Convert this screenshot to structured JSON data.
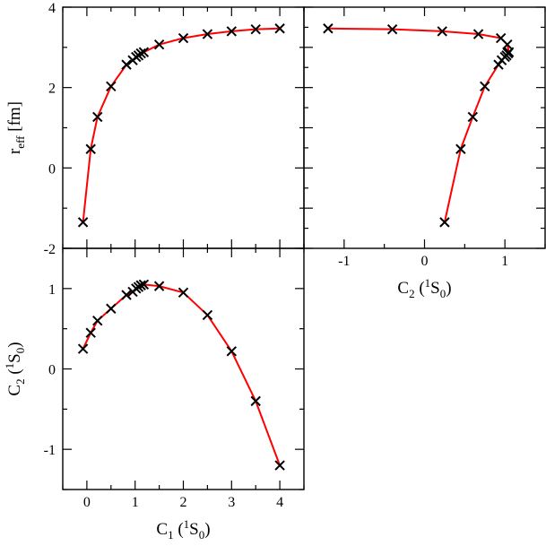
{
  "chart_data": [
    {
      "panel": "top-left",
      "type": "line",
      "xlim": [
        -0.5,
        4.5
      ],
      "ylim": [
        -2,
        4
      ],
      "xticks": [],
      "yticks": [
        -2,
        0,
        2,
        4
      ],
      "ylabel": {
        "main": "r",
        "sub": "eff",
        "unit": "[fm]"
      },
      "line_color": "#ff0000",
      "marker": "x",
      "x": [
        -0.08,
        0.08,
        0.22,
        0.5,
        0.82,
        0.95,
        1.02,
        1.07,
        1.12,
        1.18,
        1.5,
        2.0,
        2.5,
        3.0,
        3.5,
        4.0
      ],
      "y": [
        -1.35,
        0.47,
        1.27,
        2.03,
        2.57,
        2.68,
        2.76,
        2.8,
        2.85,
        2.88,
        3.07,
        3.23,
        3.33,
        3.4,
        3.45,
        3.47
      ]
    },
    {
      "panel": "top-right",
      "type": "line",
      "xlim": [
        -1.5,
        1.5
      ],
      "ylim": [
        -2,
        4
      ],
      "xticks": [
        -1,
        0,
        1
      ],
      "yticks": [],
      "xlabel": {
        "main": "C",
        "sub": "2",
        "open": " (",
        "sup": "1",
        "mid": "S",
        "sub2": "0",
        "close": ")"
      },
      "line_color": "#ff0000",
      "marker": "x",
      "x": [
        0.25,
        0.45,
        0.6,
        0.75,
        0.92,
        0.96,
        1.0,
        1.02,
        1.04,
        1.05,
        1.03,
        0.95,
        0.67,
        0.22,
        -0.4,
        -1.2
      ],
      "y": [
        -1.35,
        0.47,
        1.27,
        2.03,
        2.57,
        2.68,
        2.76,
        2.8,
        2.85,
        2.88,
        3.07,
        3.23,
        3.33,
        3.4,
        3.45,
        3.47
      ]
    },
    {
      "panel": "bottom-left",
      "type": "line",
      "xlim": [
        -0.5,
        4.5
      ],
      "ylim": [
        -1.5,
        1.5
      ],
      "xticks": [
        0,
        1,
        2,
        3,
        4
      ],
      "yticks": [
        -1,
        0,
        1
      ],
      "xlabel": {
        "main": "C",
        "sub": "1",
        "open": " (",
        "sup": "1",
        "mid": "S",
        "sub2": "0",
        "close": ")"
      },
      "ylabel": {
        "main": "C",
        "sub": "2",
        "open": " (",
        "sup": "1",
        "mid": "S",
        "sub2": "0",
        "close": ")"
      },
      "line_color": "#ff0000",
      "marker": "x",
      "x": [
        -0.08,
        0.08,
        0.22,
        0.5,
        0.82,
        0.95,
        1.02,
        1.07,
        1.12,
        1.18,
        1.5,
        2.0,
        2.5,
        3.0,
        3.5,
        4.0
      ],
      "y": [
        0.25,
        0.45,
        0.6,
        0.75,
        0.92,
        0.96,
        1.0,
        1.02,
        1.04,
        1.05,
        1.03,
        0.95,
        0.67,
        0.22,
        -0.4,
        -1.2
      ]
    }
  ]
}
